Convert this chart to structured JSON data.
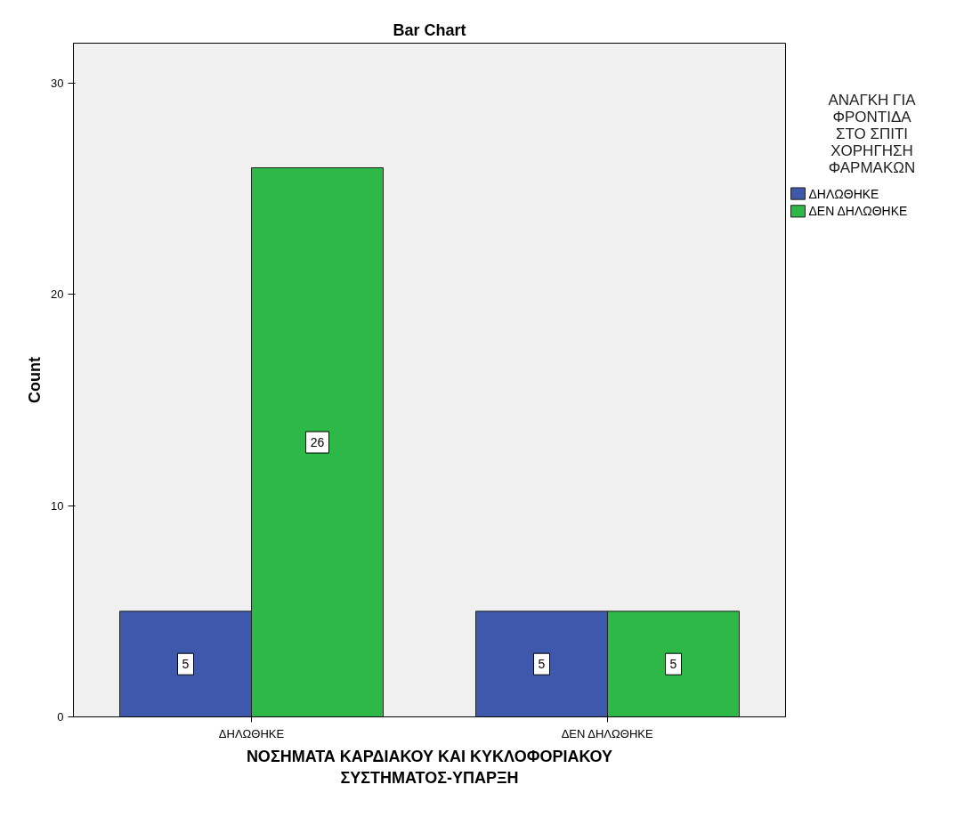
{
  "chart_data": {
    "type": "bar",
    "title": "Bar Chart",
    "xlabel": "ΝΟΣΗΜΑΤΑ ΚΑΡΔΙΑΚΟΥ ΚΑΙ ΚΥΚΛΟΦΟΡΙΑΚΟΥ\nΣΥΣΤΗΜΑΤΟΣ-ΥΠΑΡΞΗ",
    "ylabel": "Count",
    "legend_title": "ΑΝΑΓΚΗ ΓΙΑ\nΦΡΟΝΤΙΔΑ\nΣΤΟ ΣΠΙΤΙ\nΧΟΡΗΓΗΣΗ\nΦΑΡΜΑΚΩΝ",
    "categories": [
      "ΔΗΛΩΘΗΚΕ",
      "ΔΕΝ ΔΗΛΩΘΗΚΕ"
    ],
    "series": [
      {
        "name": "ΔΗΛΩΘΗΚΕ",
        "color": "#3e58ac",
        "values": [
          5,
          5
        ]
      },
      {
        "name": "ΔΕΝ ΔΗΛΩΘΗΚΕ",
        "color": "#2eb848",
        "values": [
          26,
          5
        ]
      }
    ],
    "ylim": [
      0,
      31.9
    ],
    "yticks": [
      0,
      10,
      20,
      30
    ],
    "grid": false,
    "legend": "right",
    "data_labels": true
  }
}
